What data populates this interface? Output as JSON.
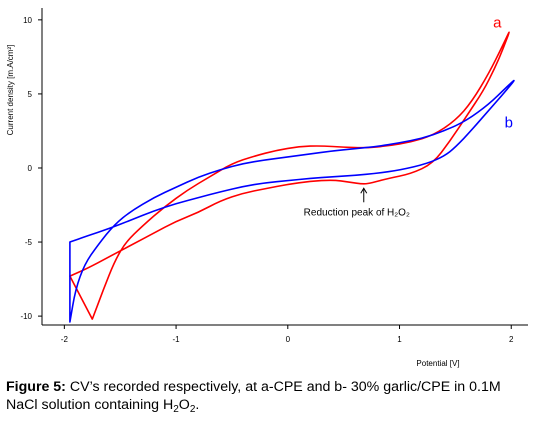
{
  "chart_data": {
    "type": "line",
    "xlabel": "Potential [V]",
    "ylabel": "Current density [m.A/cm²]",
    "xlim": [
      -2.2,
      2.15
    ],
    "ylim": [
      -10.6,
      10.8
    ],
    "x_ticks": [
      "-2",
      "-1",
      "0",
      "1",
      "2"
    ],
    "x_tick_values": [
      -2,
      -1,
      0,
      1,
      2
    ],
    "y_ticks": [
      "10",
      "5",
      "0",
      "-5",
      "-10"
    ],
    "y_tick_values": [
      10,
      5,
      0,
      -5,
      -10
    ],
    "grid": false,
    "series": [
      {
        "name": "a",
        "color": "#ff0000",
        "loop": true,
        "points": [
          [
            -1.75,
            -10.2
          ],
          [
            -1.65,
            -8.2
          ],
          [
            -1.55,
            -6.3
          ],
          [
            -1.45,
            -5.0
          ],
          [
            -1.3,
            -3.9
          ],
          [
            -1.1,
            -2.6
          ],
          [
            -0.9,
            -1.5
          ],
          [
            -0.7,
            -0.6
          ],
          [
            -0.5,
            0.3
          ],
          [
            -0.3,
            0.8
          ],
          [
            -0.1,
            1.2
          ],
          [
            0.1,
            1.45
          ],
          [
            0.3,
            1.5
          ],
          [
            0.5,
            1.4
          ],
          [
            0.7,
            1.35
          ],
          [
            0.9,
            1.5
          ],
          [
            1.1,
            1.75
          ],
          [
            1.3,
            2.2
          ],
          [
            1.5,
            3.2
          ],
          [
            1.65,
            4.5
          ],
          [
            1.8,
            6.4
          ],
          [
            1.92,
            8.2
          ],
          [
            2.0,
            9.5
          ],
          [
            1.93,
            8.1
          ],
          [
            1.85,
            6.7
          ],
          [
            1.75,
            5.2
          ],
          [
            1.6,
            3.5
          ],
          [
            1.45,
            1.8
          ],
          [
            1.3,
            0.3
          ],
          [
            1.1,
            -0.4
          ],
          [
            0.9,
            -0.7
          ],
          [
            0.75,
            -1.0
          ],
          [
            0.68,
            -1.1
          ],
          [
            0.55,
            -0.95
          ],
          [
            0.4,
            -0.8
          ],
          [
            0.2,
            -0.9
          ],
          [
            0.0,
            -1.1
          ],
          [
            -0.2,
            -1.4
          ],
          [
            -0.4,
            -1.7
          ],
          [
            -0.6,
            -2.2
          ],
          [
            -0.8,
            -3.0
          ],
          [
            -1.0,
            -3.6
          ],
          [
            -1.2,
            -4.4
          ],
          [
            -1.4,
            -5.2
          ],
          [
            -1.6,
            -6.0
          ],
          [
            -1.8,
            -6.8
          ],
          [
            -1.95,
            -7.3
          ]
        ]
      },
      {
        "name": "b",
        "color": "#0000ff",
        "loop": true,
        "points": [
          [
            -1.95,
            -10.4
          ],
          [
            -1.9,
            -8.2
          ],
          [
            -1.82,
            -6.5
          ],
          [
            -1.7,
            -5.2
          ],
          [
            -1.55,
            -3.8
          ],
          [
            -1.4,
            -2.9
          ],
          [
            -1.2,
            -2.0
          ],
          [
            -1.0,
            -1.3
          ],
          [
            -0.8,
            -0.6
          ],
          [
            -0.6,
            -0.1
          ],
          [
            -0.4,
            0.3
          ],
          [
            -0.2,
            0.55
          ],
          [
            0.0,
            0.75
          ],
          [
            0.2,
            0.95
          ],
          [
            0.4,
            1.15
          ],
          [
            0.6,
            1.3
          ],
          [
            0.8,
            1.45
          ],
          [
            1.0,
            1.7
          ],
          [
            1.2,
            2.0
          ],
          [
            1.4,
            2.5
          ],
          [
            1.6,
            3.2
          ],
          [
            1.8,
            4.3
          ],
          [
            1.95,
            5.4
          ],
          [
            2.05,
            6.1
          ],
          [
            1.95,
            5.2
          ],
          [
            1.8,
            3.9
          ],
          [
            1.65,
            2.6
          ],
          [
            1.5,
            1.4
          ],
          [
            1.4,
            0.8
          ],
          [
            1.25,
            0.3
          ],
          [
            1.0,
            -0.15
          ],
          [
            0.8,
            -0.35
          ],
          [
            0.6,
            -0.5
          ],
          [
            0.4,
            -0.6
          ],
          [
            0.2,
            -0.7
          ],
          [
            0.0,
            -0.85
          ],
          [
            -0.2,
            -1.0
          ],
          [
            -0.4,
            -1.25
          ],
          [
            -0.6,
            -1.6
          ],
          [
            -0.8,
            -2.0
          ],
          [
            -1.0,
            -2.4
          ],
          [
            -1.2,
            -2.9
          ],
          [
            -1.4,
            -3.5
          ],
          [
            -1.6,
            -4.1
          ],
          [
            -1.8,
            -4.6
          ],
          [
            -1.95,
            -5.0
          ]
        ]
      }
    ],
    "annotation": {
      "text": "Reduction peak of H₂O₂",
      "x": 0.68,
      "y": -1.1
    }
  },
  "caption": {
    "label": "Figure 5:",
    "text_before": "CV’s recorded respectively, at a-CPE and b- 30% garlic/CPE in 0.1M NaCl solution containing H",
    "sub1": "2",
    "mid": "O",
    "sub2": "2",
    "end": "."
  }
}
